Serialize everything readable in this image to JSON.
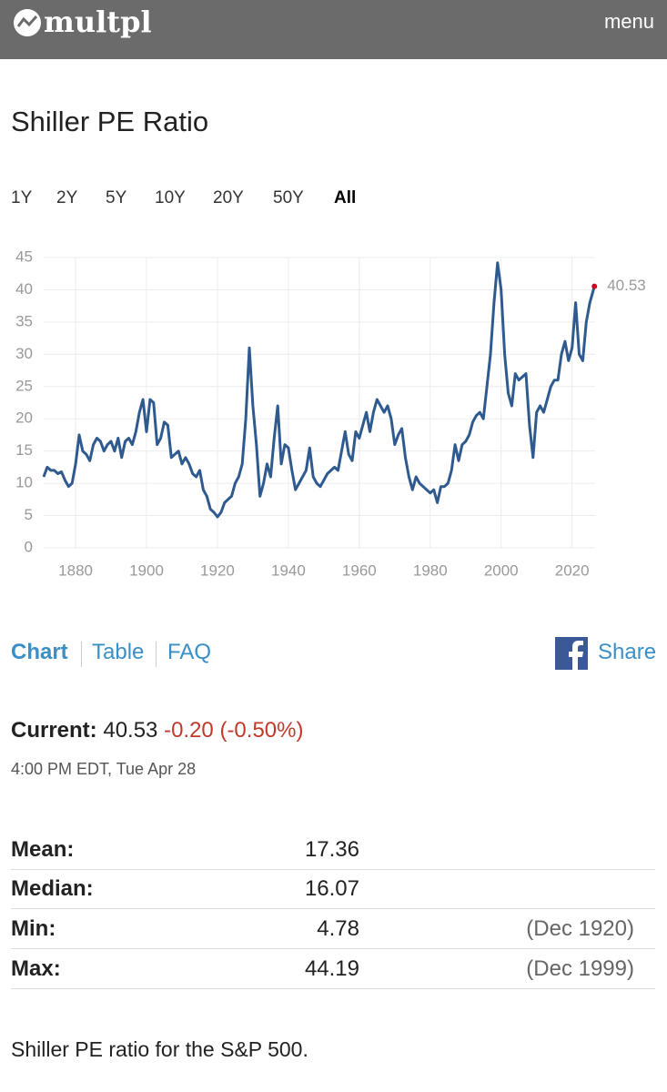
{
  "header": {
    "brand": "multpl",
    "menu": "menu"
  },
  "page_title": "Shiller PE Ratio",
  "ranges": [
    "1Y",
    "2Y",
    "5Y",
    "10Y",
    "20Y",
    "50Y",
    "All"
  ],
  "active_range": 6,
  "chart_data": {
    "type": "line",
    "color": "#2f5a8f",
    "last_point_color": "#d0021b",
    "grid": true,
    "x": [
      1871,
      1872,
      1873,
      1874,
      1875,
      1876,
      1877,
      1878,
      1879,
      1880,
      1881,
      1882,
      1883,
      1884,
      1885,
      1886,
      1887,
      1888,
      1889,
      1890,
      1891,
      1892,
      1893,
      1894,
      1895,
      1896,
      1897,
      1898,
      1899,
      1900,
      1901,
      1902,
      1903,
      1904,
      1905,
      1906,
      1907,
      1908,
      1909,
      1910,
      1911,
      1912,
      1913,
      1914,
      1915,
      1916,
      1917,
      1918,
      1919,
      1920,
      1921,
      1922,
      1923,
      1924,
      1925,
      1926,
      1927,
      1928,
      1929,
      1930,
      1931,
      1932,
      1933,
      1934,
      1935,
      1936,
      1937,
      1938,
      1939,
      1940,
      1941,
      1942,
      1943,
      1944,
      1945,
      1946,
      1947,
      1948,
      1949,
      1950,
      1951,
      1952,
      1953,
      1954,
      1955,
      1956,
      1957,
      1958,
      1959,
      1960,
      1961,
      1962,
      1963,
      1964,
      1965,
      1966,
      1967,
      1968,
      1969,
      1970,
      1971,
      1972,
      1973,
      1974,
      1975,
      1976,
      1977,
      1978,
      1979,
      1980,
      1981,
      1982,
      1983,
      1984,
      1985,
      1986,
      1987,
      1988,
      1989,
      1990,
      1991,
      1992,
      1993,
      1994,
      1995,
      1996,
      1997,
      1998,
      1999,
      2000,
      2001,
      2002,
      2003,
      2004,
      2005,
      2006,
      2007,
      2008,
      2009,
      2010,
      2011,
      2012,
      2013,
      2014,
      2015,
      2016,
      2017,
      2018,
      2019,
      2020,
      2021,
      2022,
      2023,
      2024,
      2025,
      2026.3
    ],
    "values": [
      11,
      12.5,
      12,
      12,
      11.5,
      11.8,
      10.5,
      9.5,
      10,
      13,
      17.5,
      15,
      14.5,
      13.5,
      16,
      17,
      16.5,
      15,
      16,
      16.5,
      15,
      17,
      14,
      16.5,
      17,
      16,
      18,
      21,
      23,
      18,
      23,
      22.5,
      16,
      17,
      19.5,
      19,
      14,
      14.5,
      15,
      13,
      14,
      13,
      11.5,
      11,
      12,
      9,
      8,
      6,
      5.5,
      4.78,
      5.5,
      7,
      7.5,
      8,
      10,
      11,
      13,
      20,
      31,
      22,
      16,
      8,
      10,
      13,
      11,
      17,
      22,
      13,
      16,
      15.5,
      12,
      9,
      10,
      11,
      12,
      15.5,
      11,
      10,
      9.5,
      10.5,
      11.5,
      12,
      12.5,
      12,
      15,
      18,
      14.5,
      13.5,
      18,
      17,
      19,
      21,
      18,
      21,
      23,
      22,
      21,
      22,
      20,
      16,
      17.5,
      18.5,
      14,
      11,
      9,
      11,
      10,
      9.5,
      9,
      8.5,
      9,
      7,
      9.5,
      9.5,
      10,
      12,
      16,
      13.5,
      16,
      16.5,
      17.5,
      19.5,
      20.5,
      21,
      20,
      25,
      30,
      38,
      44.19,
      40,
      30,
      24,
      22,
      27,
      26,
      26.5,
      27,
      19,
      14,
      21,
      22,
      21,
      23,
      25,
      26,
      26,
      30,
      32,
      29,
      31,
      38,
      30,
      29,
      35,
      38,
      40.53
    ],
    "xlim": [
      1871,
      2026.5
    ],
    "xticks": [
      1880,
      1900,
      1920,
      1940,
      1960,
      1980,
      2000,
      2020
    ],
    "ylim": [
      0,
      45
    ],
    "yticks": [
      0,
      5,
      10,
      15,
      20,
      25,
      30,
      35,
      40,
      45
    ]
  },
  "tabs": [
    "Chart",
    "Table",
    "FAQ"
  ],
  "share": "Share",
  "current": {
    "label": "Current:",
    "value": "40.53",
    "change": "-0.20 (-0.50%)",
    "time": "4:00 PM EDT, Tue Apr 28"
  },
  "stats": [
    {
      "label": "Mean:",
      "value": "17.36"
    },
    {
      "label": "Median:",
      "value": "16.07"
    },
    {
      "label": "Min:",
      "value": "4.78",
      "date": "(Dec 1920)"
    },
    {
      "label": "Max:",
      "value": "44.19",
      "date": "(Dec 1999)"
    }
  ],
  "footer": "Shiller PE ratio for the S&P 500."
}
